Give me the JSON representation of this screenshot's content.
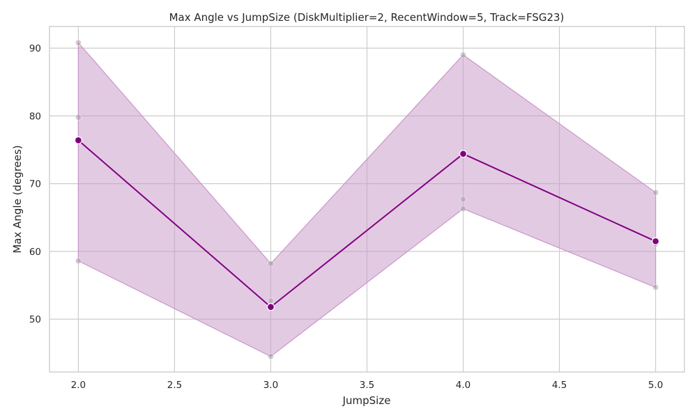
{
  "chart_data": {
    "type": "line",
    "title": "Max Angle vs JumpSize (DiskMultiplier=2, RecentWindow=5, Track=FSG23)",
    "xlabel": "JumpSize",
    "ylabel": "Max Angle (degrees)",
    "xlim": [
      1.85,
      5.15
    ],
    "ylim": [
      42.2,
      93.2
    ],
    "x_ticks": [
      "2.0",
      "2.5",
      "3.0",
      "3.5",
      "4.0",
      "4.5",
      "5.0"
    ],
    "y_ticks": [
      "50",
      "60",
      "70",
      "80",
      "90"
    ],
    "grid": true,
    "legend": "none",
    "series": [
      {
        "x": [
          2.0,
          3.0,
          4.0,
          5.0
        ],
        "mean": [
          76.4,
          51.8,
          74.4,
          61.5
        ],
        "band_low": [
          58.6,
          44.5,
          66.3,
          54.7
        ],
        "band_high": [
          90.8,
          58.2,
          89.0,
          68.7
        ],
        "color": "#800080",
        "band_color": "#c896c8"
      }
    ],
    "raw_points": [
      {
        "x": 2.0,
        "y": 90.8
      },
      {
        "x": 2.0,
        "y": 79.8
      },
      {
        "x": 2.0,
        "y": 58.6
      },
      {
        "x": 3.0,
        "y": 58.2
      },
      {
        "x": 3.0,
        "y": 52.7
      },
      {
        "x": 3.0,
        "y": 44.5
      },
      {
        "x": 4.0,
        "y": 89.0
      },
      {
        "x": 4.0,
        "y": 67.7
      },
      {
        "x": 4.0,
        "y": 66.3
      },
      {
        "x": 5.0,
        "y": 68.7
      },
      {
        "x": 5.0,
        "y": 61.1
      },
      {
        "x": 5.0,
        "y": 54.7
      }
    ],
    "raw_point_color": "#999999"
  }
}
